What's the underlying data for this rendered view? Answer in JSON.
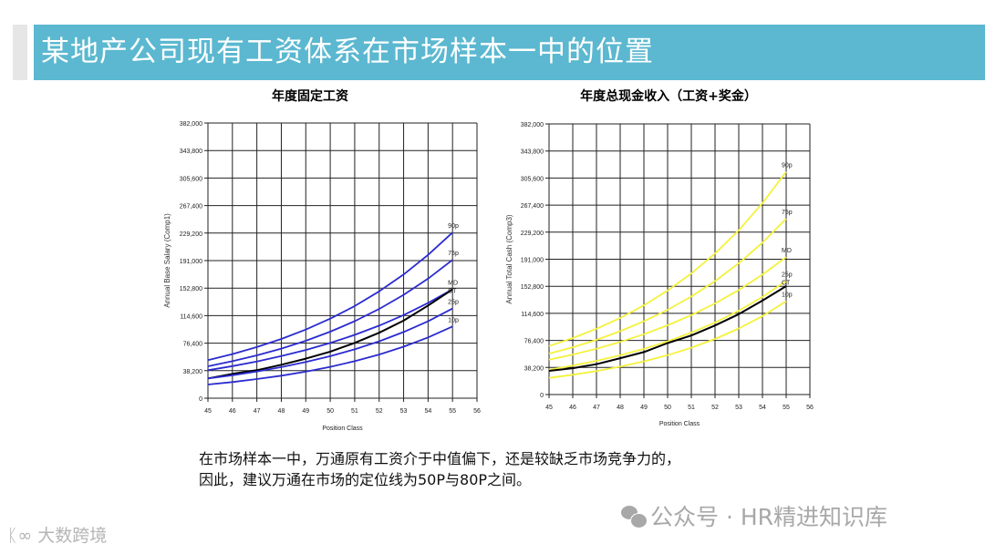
{
  "header": {
    "title": "某地产公司现有工资体系在市场样本一中的位置"
  },
  "colors": {
    "header": "#5bb8d0",
    "left_series": "#2b2bd0",
    "right_series": "#f4f23c",
    "ct_line": "#000000"
  },
  "chart_data": [
    {
      "type": "line",
      "title": "年度固定工资",
      "xlabel": "Position Class",
      "ylabel": "Annual Base Salary (Comp1)",
      "xlim": [
        45,
        56
      ],
      "ylim": [
        0,
        382000
      ],
      "x_ticks": [
        "45",
        "46",
        "47",
        "48",
        "49",
        "50",
        "51",
        "52",
        "53",
        "54",
        "55",
        "56"
      ],
      "y_ticks": [
        "0",
        "38,200",
        "76,400",
        "114,600",
        "152,800",
        "191,000",
        "229,200",
        "267,400",
        "305,600",
        "343,800",
        "382,000"
      ],
      "grid": true,
      "x": [
        45,
        46,
        47,
        48,
        49,
        50,
        51,
        52,
        53,
        54,
        55
      ],
      "series": [
        {
          "name": "90p",
          "color": "#2b2bd0",
          "values": [
            52800,
            61200,
            70900,
            82200,
            95200,
            110400,
            127900,
            148200,
            171700,
            199000,
            230000
          ]
        },
        {
          "name": "75p",
          "color": "#2b2bd0",
          "values": [
            44300,
            51300,
            59400,
            68800,
            79700,
            92300,
            106900,
            123800,
            143400,
            166000,
            192000
          ]
        },
        {
          "name": "MD",
          "color": "#2b2bd0",
          "values": [
            38800,
            44500,
            51000,
            58400,
            66900,
            76700,
            87900,
            100700,
            115400,
            132300,
            151000
          ]
        },
        {
          "name": "CT",
          "color": "#000000",
          "values": [
            27400,
            33800,
            38800,
            46400,
            54900,
            64600,
            76800,
            90800,
            107600,
            128700,
            151000
          ]
        },
        {
          "name": "25p",
          "color": "#2b2bd0",
          "values": [
            27400,
            31900,
            37100,
            43100,
            50200,
            58300,
            67800,
            78900,
            91800,
            106700,
            124500
          ]
        },
        {
          "name": "10p",
          "color": "#2b2bd0",
          "values": [
            19000,
            22400,
            26500,
            31200,
            36800,
            43500,
            51300,
            60600,
            71500,
            84400,
            99600
          ]
        }
      ]
    },
    {
      "type": "line",
      "title": "年度总现金收入（工资+奖金）",
      "xlabel": "Position Class",
      "ylabel": "Annual Total Cash (Comp3)",
      "xlim": [
        45,
        56
      ],
      "ylim": [
        0,
        382000
      ],
      "x_ticks": [
        "45",
        "46",
        "47",
        "48",
        "49",
        "50",
        "51",
        "52",
        "53",
        "54",
        "55",
        "56"
      ],
      "y_ticks": [
        "0",
        "38,200",
        "76,400",
        "114,600",
        "152,800",
        "191,000",
        "229,200",
        "267,400",
        "305,600",
        "343,800",
        "382,000"
      ],
      "grid": true,
      "x": [
        45,
        46,
        47,
        48,
        49,
        50,
        51,
        52,
        53,
        54,
        55
      ],
      "series": [
        {
          "name": "90p",
          "color": "#f4f23c",
          "values": [
            68400,
            79700,
            92800,
            108100,
            125900,
            146700,
            170900,
            199100,
            231900,
            270200,
            314500
          ]
        },
        {
          "name": "75p",
          "color": "#f4f23c",
          "values": [
            57700,
            66800,
            77200,
            89400,
            103400,
            119600,
            138400,
            160100,
            185300,
            214400,
            248100
          ]
        },
        {
          "name": "MD",
          "color": "#f4f23c",
          "values": [
            49200,
            56400,
            64700,
            74300,
            85200,
            97700,
            112100,
            128600,
            147500,
            169200,
            194100
          ]
        },
        {
          "name": "25p",
          "color": "#f4f23c",
          "values": [
            35100,
            40900,
            47600,
            55400,
            64500,
            75100,
            87400,
            101700,
            118400,
            137800,
            160400
          ]
        },
        {
          "name": "CT",
          "color": "#000000",
          "values": [
            33400,
            37200,
            42800,
            51300,
            59900,
            72700,
            83400,
            97500,
            113400,
            132600,
            153100
          ]
        },
        {
          "name": "10p",
          "color": "#f4f23c",
          "values": [
            23500,
            27900,
            33200,
            39400,
            46800,
            55600,
            66100,
            78500,
            93300,
            110800,
            131700
          ]
        }
      ]
    }
  ],
  "body": {
    "line1": "在市场样本一中，万通原有工资介于中值偏下，还是较缺乏市场竞争力的，",
    "line2": "因此，建议万通在市场的定位线为50P与80P之间。"
  },
  "watermarks": {
    "wechat": "公众号 · HR精进知识库",
    "brand": "大数跨境"
  }
}
